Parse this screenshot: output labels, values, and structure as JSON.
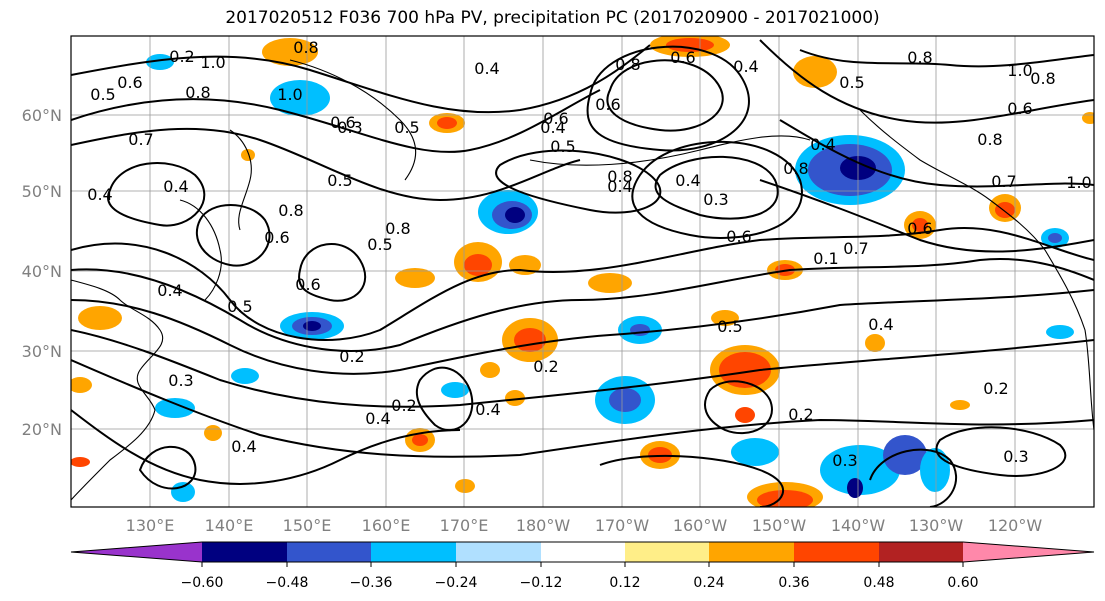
{
  "title": "2017020512 F036 700 hPa PV, precipitation PC (2017020900 - 2017021000)",
  "lat_labels": [
    "60°N",
    "50°N",
    "40°N",
    "30°N",
    "20°N"
  ],
  "lon_labels": [
    "130°E",
    "140°E",
    "150°E",
    "160°E",
    "170°E",
    "180°W",
    "170°W",
    "160°W",
    "150°W",
    "140°W",
    "130°W",
    "120°W"
  ],
  "colorbar": {
    "colors": [
      "#9933cc",
      "#000080",
      "#3355cc",
      "#00bfff",
      "#b0e0ff",
      "#ffffff",
      "#ffee88",
      "#ffa500",
      "#ff4500",
      "#b22222",
      "#ff88aa"
    ],
    "ticks": [
      "−0.60",
      "−0.48",
      "−0.36",
      "−0.24",
      "−0.12",
      "0.12",
      "0.24",
      "0.36",
      "0.48",
      "0.60"
    ]
  },
  "contour_labels": [
    "0.2",
    "1.0",
    "0.8",
    "0.5",
    "0.6",
    "0.8",
    "1.0",
    "0.4",
    "0.8",
    "0.6",
    "0.4",
    "0.8",
    "1.0",
    "0.6",
    "0.3",
    "0.5",
    "0.6",
    "0.4",
    "0.8",
    "0.4",
    "0.3",
    "0.7",
    "0.6",
    "0.1",
    "0.7",
    "0.6",
    "0.8",
    "0.4",
    "0.5",
    "0.8",
    "0.6",
    "0.8",
    "0.5",
    "0.7",
    "0.4",
    "0.5",
    "0.6",
    "0.5",
    "0.4",
    "0.3",
    "0.2",
    "0.4",
    "0.4",
    "0.2",
    "0.4",
    "0.2",
    "0.3",
    "0.2",
    "0.3",
    "0.4",
    "0.5",
    "0.2",
    "0.8",
    "0.4",
    "1.0",
    "0.8",
    "0.6",
    "0.6",
    "0.5",
    "0.4"
  ]
}
